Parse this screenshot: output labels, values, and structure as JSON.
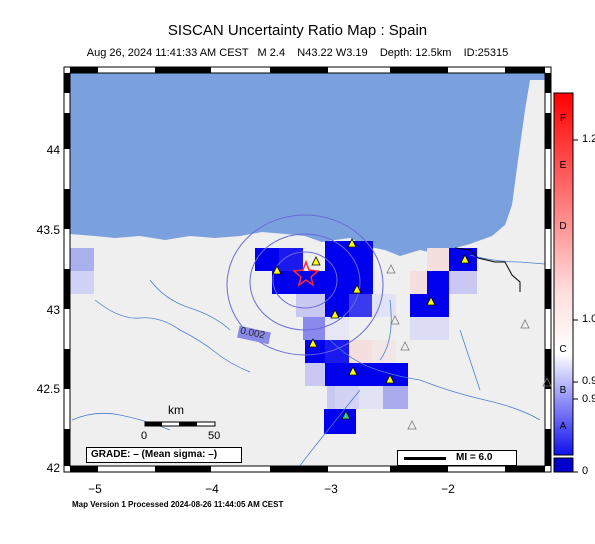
{
  "title": "SISCAN Uncertainty Ratio Map : Spain",
  "subtitle": "Aug 26, 2024 11:41:33 AM CEST   M 2.4    N43.22 W3.19    Depth: 12.5km    ID:25315",
  "footer": "Map Version 1 Processed 2024-08-26 11:44:05 AM CEST",
  "latitude_labels": [
    "44",
    "43.5",
    "43",
    "42.5",
    "42"
  ],
  "longitude_labels": [
    "−5",
    "−4",
    "−3",
    "−2"
  ],
  "colorbar": {
    "right_labels": [
      "1.2",
      "1.0",
      "0.9",
      "0.9",
      "0"
    ],
    "mid_labels": [
      "F",
      "E",
      "D",
      "C",
      "B",
      "A"
    ],
    "colors": [
      "#ff0000",
      "#ffffff",
      "#0000ff"
    ]
  },
  "contour_label": "0.002",
  "scale": {
    "unit": "km",
    "start": "0",
    "end": "50"
  },
  "grade_box": "GRADE: – (Mean sigma: –)",
  "mi_legend": "MI = 6.0",
  "colors": {
    "sea": "#7aa0dd",
    "land": "#efefef",
    "high_ratio": "#0000ee",
    "epicenter": "#ff2222",
    "station": "#ffff00"
  }
}
